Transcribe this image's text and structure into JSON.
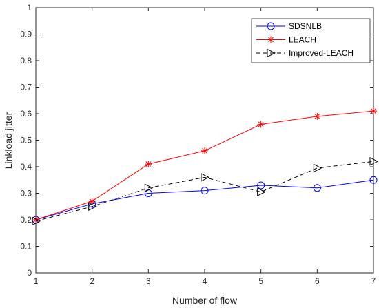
{
  "chart_data": {
    "type": "line",
    "title": "",
    "xlabel": "Number of flow",
    "ylabel": "Linkload jitter",
    "x": [
      1,
      2,
      3,
      4,
      5,
      6,
      7
    ],
    "xlim": [
      1,
      7
    ],
    "ylim": [
      0,
      1
    ],
    "xticks": [
      "1",
      "2",
      "3",
      "4",
      "5",
      "6",
      "7"
    ],
    "yticks": [
      "0",
      "0.1",
      "0.2",
      "0.3",
      "0.4",
      "0.5",
      "0.6",
      "0.7",
      "0.8",
      "0.9",
      "1"
    ],
    "grid": false,
    "legend_position": "top-right",
    "series": [
      {
        "name": "SDSNLB",
        "values": [
          0.2,
          0.26,
          0.3,
          0.31,
          0.33,
          0.32,
          0.35
        ],
        "color": "#0000ff",
        "marker": "circle",
        "line": "solid"
      },
      {
        "name": "LEACH",
        "values": [
          0.2,
          0.27,
          0.41,
          0.46,
          0.56,
          0.59,
          0.61
        ],
        "color": "#ff0000",
        "marker": "asterisk",
        "line": "solid"
      },
      {
        "name": "Improved-LEACH",
        "values": [
          0.195,
          0.25,
          0.32,
          0.36,
          0.305,
          0.395,
          0.42
        ],
        "color": "#000000",
        "marker": "triangle-right",
        "line": "dashed"
      }
    ]
  }
}
